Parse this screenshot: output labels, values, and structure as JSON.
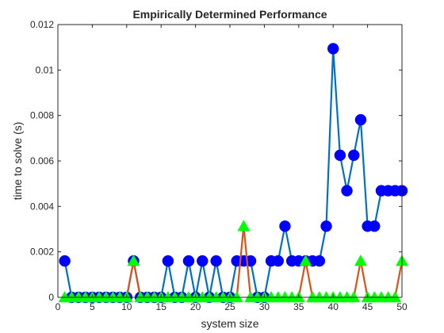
{
  "chart_data": {
    "type": "line",
    "title": "Empirically Determined Performance",
    "xlabel": "system size",
    "ylabel": "time to solve (s)",
    "xlim": [
      0,
      50
    ],
    "ylim": [
      0,
      0.012
    ],
    "xticks": [
      0,
      5,
      10,
      15,
      20,
      25,
      30,
      35,
      40,
      45,
      50
    ],
    "yticks": [
      0,
      0.002,
      0.004,
      0.006,
      0.008,
      0.01,
      0.012
    ],
    "xtick_labels": [
      "0",
      "5",
      "10",
      "15",
      "20",
      "25",
      "30",
      "35",
      "40",
      "45",
      "50"
    ],
    "ytick_labels": [
      "0",
      "0.002",
      "0.004",
      "0.006",
      "0.008",
      "0.01",
      "0.012"
    ],
    "grid": false,
    "x": [
      1,
      2,
      3,
      4,
      5,
      6,
      7,
      8,
      9,
      10,
      11,
      12,
      13,
      14,
      15,
      16,
      17,
      18,
      19,
      20,
      21,
      22,
      23,
      24,
      25,
      26,
      27,
      28,
      29,
      30,
      31,
      32,
      33,
      34,
      35,
      36,
      37,
      38,
      39,
      40,
      41,
      42,
      43,
      44,
      45,
      46,
      47,
      48,
      49,
      50
    ],
    "series": [
      {
        "color": "#0072BD",
        "marker_color": "#0000FF",
        "marker": "circle",
        "values": [
          0.0016,
          0,
          0,
          0,
          0,
          0,
          0,
          0,
          0,
          0,
          0.0016,
          0,
          0,
          0,
          0,
          0.0016,
          0,
          0,
          0.0016,
          0,
          0.0016,
          0,
          0.0016,
          0,
          0,
          0.0016,
          0.0016,
          0.0016,
          0,
          0,
          0.0016,
          0.0016,
          0.00313,
          0.0016,
          0.0016,
          0.0016,
          0.0016,
          0.0016,
          0.00313,
          0.01094,
          0.00625,
          0.00469,
          0.00625,
          0.00781,
          0.00313,
          0.00313,
          0.00469,
          0.00469,
          0.00469,
          0.00469
        ]
      },
      {
        "color": "#D95319",
        "marker_color": "#00FF00",
        "marker": "triangle",
        "values": [
          0,
          0,
          0,
          0,
          0,
          0,
          0,
          0,
          0,
          0,
          0.0016,
          0,
          0,
          0,
          0,
          0,
          0,
          0,
          0,
          0,
          0,
          0,
          0,
          0,
          0,
          0,
          0.00313,
          0,
          0,
          0,
          0,
          0,
          0,
          0,
          0,
          0.0016,
          0,
          0,
          0,
          0,
          0,
          0,
          0,
          0.0016,
          0,
          0,
          0,
          0,
          0,
          0.0016
        ]
      }
    ]
  }
}
